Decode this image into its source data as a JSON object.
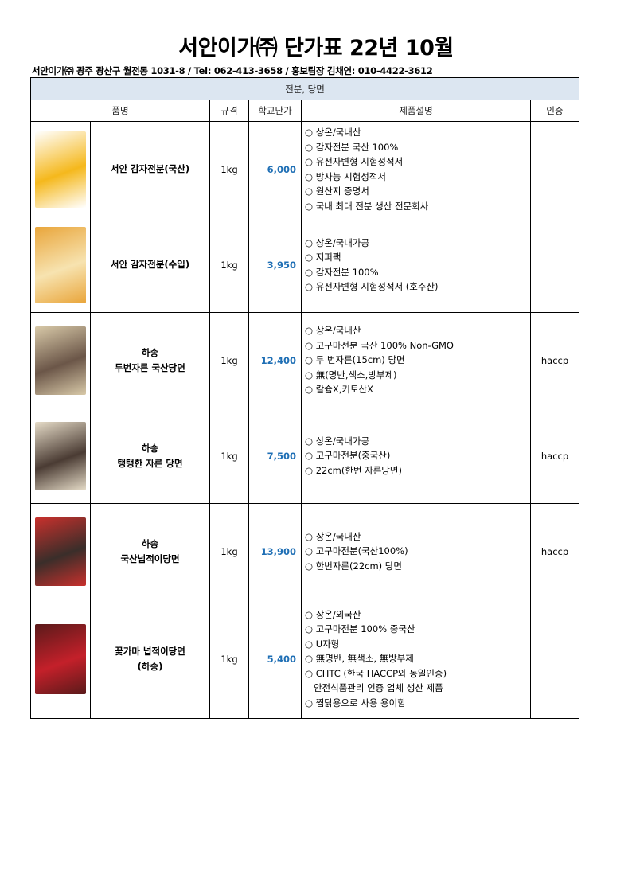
{
  "title": "서안이가㈜ 단가표 22년 10월",
  "subtitle": "서안이가㈜ 광주 광산구 월전동 1031-8 / Tel: 062-413-3658 / 홍보팀장 김채연: 010-4422-3612",
  "category": "전분, 당면",
  "headers": {
    "name": "품명",
    "spec": "규격",
    "price": "학교단가",
    "desc": "제품설명",
    "cert": "인증"
  },
  "products": [
    {
      "name1": "서안 감자전분(국산)",
      "name2": "",
      "spec": "1kg",
      "price": "6,000",
      "cert": "",
      "desc": [
        "○ 상온/국내산",
        "○ 감자전분 국산 100%",
        "○ 유전자변형 시험성적서",
        "○ 방사능 시험성적서",
        "○ 원산지 증명서",
        "○ 국내 최대 전분 생산 전문회사"
      ],
      "colors": [
        "#f5b81c",
        "#ffffff"
      ]
    },
    {
      "name1": "서안 감자전분(수입)",
      "name2": "",
      "spec": "1kg",
      "price": "3,950",
      "cert": "",
      "desc": [
        "○ 상온/국내가공",
        "○ 지퍼팩",
        "○ 감자전분 100%",
        "○ 유전자변형 시험성적서 (호주산)"
      ],
      "colors": [
        "#f7e3b0",
        "#e9a53a"
      ]
    },
    {
      "name1": "하송",
      "name2": "두번자른 국산당면",
      "spec": "1kg",
      "price": "12,400",
      "cert": "haccp",
      "desc": [
        "○ 상온/국내산",
        "○ 고구마전분 국산 100% Non-GMO",
        "○ 두 번자른(15cm) 당면",
        "○ 無(명반,색소,방부제)",
        "○ 칼슘X,키토산X"
      ],
      "colors": [
        "#6b5648",
        "#d8c9a8"
      ]
    },
    {
      "name1": "하송",
      "name2": "탱탱한 자른 당면",
      "spec": "1kg",
      "price": "7,500",
      "cert": "haccp",
      "desc": [
        "○ 상온/국내가공",
        "○ 고구마전분(중국산)",
        "○ 22cm(한번 자른당면)"
      ],
      "colors": [
        "#4a3b33",
        "#e6dcc8"
      ]
    },
    {
      "name1": "하송",
      "name2": "국산넙적이당면",
      "spec": "1kg",
      "price": "13,900",
      "cert": "haccp",
      "desc": [
        "○ 상온/국내산",
        "○ 고구마전분(국산100%)",
        "○ 한번자른(22cm) 당면"
      ],
      "colors": [
        "#3a2e2a",
        "#c9302c"
      ]
    },
    {
      "name1": "꽃가마 넙적이당면",
      "name2": "(하송)",
      "spec": "1kg",
      "price": "5,400",
      "cert": "",
      "desc": [
        "○ 상온/외국산",
        "○ 고구마전분 100% 중국산",
        "○ U자형",
        "○ 無명반, 無색소, 無방부제",
        "○ CHTC (한국 HACCP와 동일인증)",
        "   안전식품관리 인증 업체 생산 제품",
        "○ 찜닭용으로 사용 용이함"
      ],
      "colors": [
        "#c4202a",
        "#5a1a1a"
      ]
    }
  ]
}
